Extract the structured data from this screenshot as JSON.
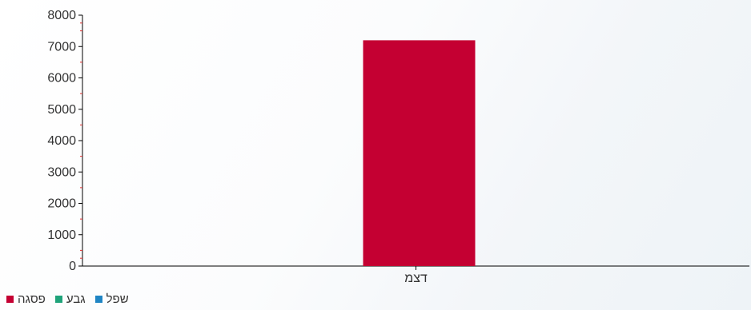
{
  "chart_data": {
    "type": "bar",
    "categories": [
      "דצמ"
    ],
    "series": [
      {
        "name": "פסגה",
        "color": "#c40032",
        "values": [
          7200
        ]
      },
      {
        "name": "גבע",
        "color": "#1fa37a",
        "values": [
          0
        ]
      },
      {
        "name": "שפל",
        "color": "#1f85c4",
        "values": [
          0
        ]
      }
    ],
    "ylim": [
      0,
      8000
    ],
    "yticks": [
      0,
      1000,
      2000,
      3000,
      4000,
      5000,
      6000,
      7000,
      8000
    ],
    "grid": false,
    "legend_position": "bottom-left"
  },
  "legend": [
    {
      "label": "שפל",
      "color": "#1f85c4"
    },
    {
      "label": "גבע",
      "color": "#1fa37a"
    },
    {
      "label": "פסגה",
      "color": "#c40032"
    }
  ],
  "colors": {
    "axis": "#000000",
    "minor_tick": "#e03030"
  }
}
